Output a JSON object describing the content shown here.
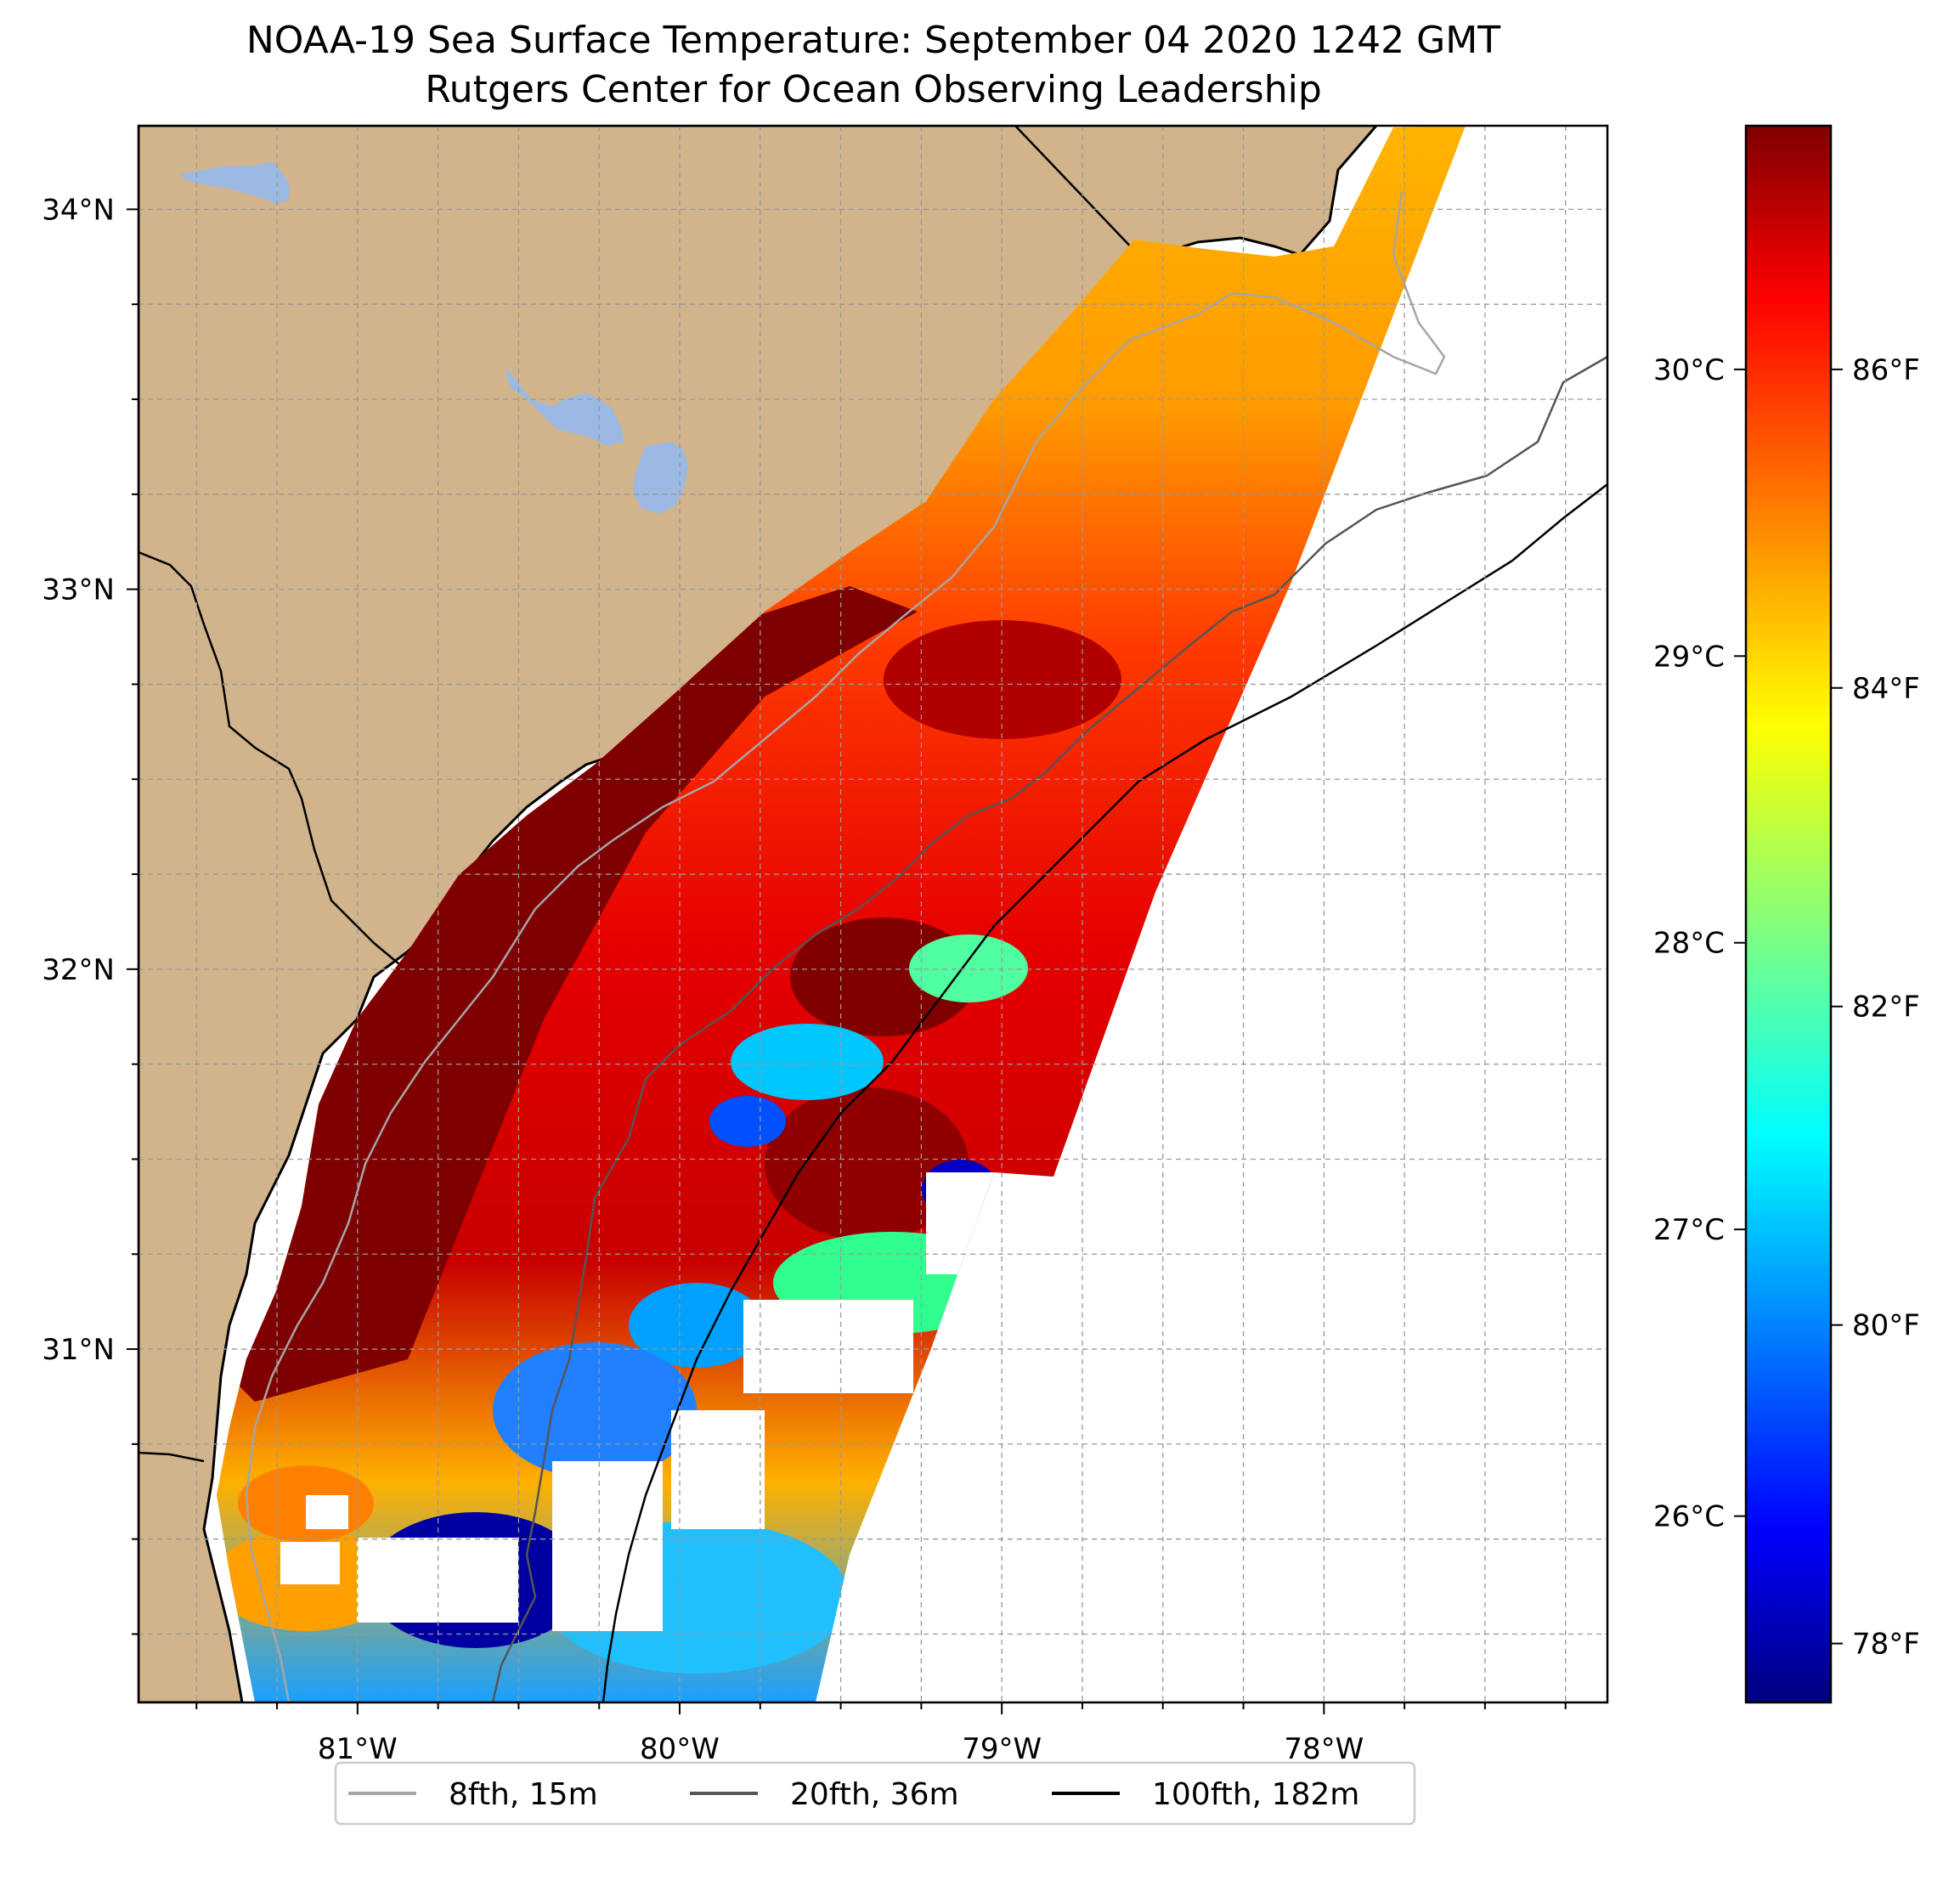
{
  "title": {
    "line1": "NOAA-19 Sea Surface Temperature: September 04 2020 1242 GMT",
    "line2": "Rutgers Center for Ocean Observing Leadership"
  },
  "map": {
    "lon_range": [
      -81.68,
      -77.12
    ],
    "lat_range": [
      30.07,
      34.22
    ],
    "longitude_ticks": [
      {
        "value": -81,
        "label": "81°W"
      },
      {
        "value": -80,
        "label": "80°W"
      },
      {
        "value": -79,
        "label": "79°W"
      },
      {
        "value": -78,
        "label": "78°W"
      }
    ],
    "latitude_ticks": [
      {
        "value": 31,
        "label": "31°N"
      },
      {
        "value": 32,
        "label": "32°N"
      },
      {
        "value": 33,
        "label": "33°N"
      },
      {
        "value": 34,
        "label": "34°N"
      }
    ],
    "grid": "dashed, every 0.25°",
    "colors": {
      "land": "#d2b48c",
      "lakes": "#9bb9e2",
      "ocean_no_data": "#ffffff",
      "coastline": "#000000"
    }
  },
  "colorbar": {
    "colormap": "jet",
    "range_celsius": [
      25.35,
      30.85
    ],
    "celsius_ticks": [
      {
        "value": 26,
        "label": "26°C"
      },
      {
        "value": 27,
        "label": "27°C"
      },
      {
        "value": 28,
        "label": "28°C"
      },
      {
        "value": 29,
        "label": "29°C"
      },
      {
        "value": 30,
        "label": "30°C"
      }
    ],
    "fahrenheit_ticks": [
      {
        "value": 78,
        "label": "78°F"
      },
      {
        "value": 80,
        "label": "80°F"
      },
      {
        "value": 82,
        "label": "82°F"
      },
      {
        "value": 84,
        "label": "84°F"
      },
      {
        "value": 86,
        "label": "86°F"
      }
    ]
  },
  "legend": {
    "placement": "bottom-center",
    "items": [
      {
        "label": "8fth, 15m",
        "color": "#a6a6a6"
      },
      {
        "label": "20fth, 36m",
        "color": "#555555"
      },
      {
        "label": "100fth, 182m",
        "color": "#000000"
      }
    ]
  }
}
